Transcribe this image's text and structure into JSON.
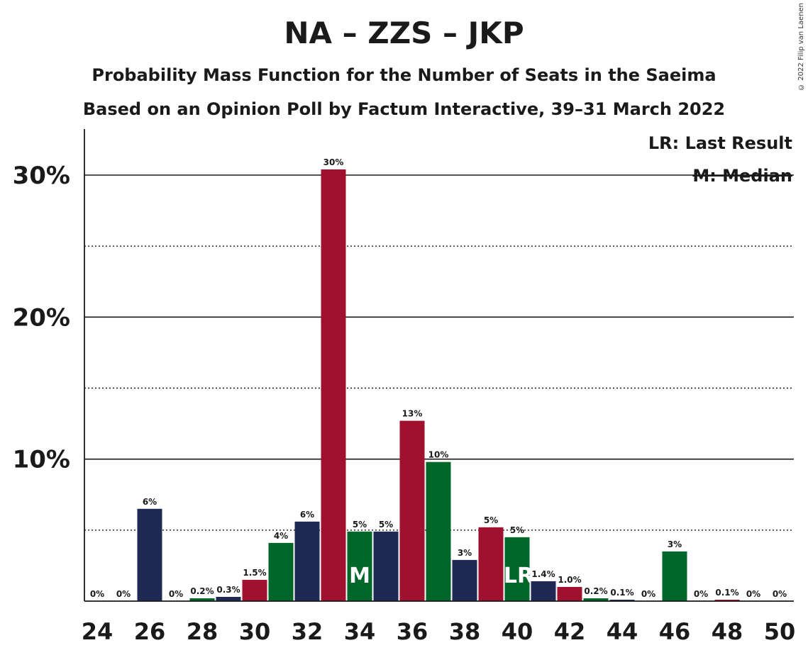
{
  "chart_data": {
    "type": "bar",
    "title": "NA – ZZS – JKP",
    "subtitle": "Probability Mass Function for the Number of Seats in the Saeima",
    "subtitle2": "Based on an Opinion Poll by Factum Interactive, 39–31 March 2022",
    "copyright": "© 2022 Filip van Laenen",
    "legend": {
      "lr": "LR: Last Result",
      "m": "M: Median",
      "position": "top-right"
    },
    "x": [
      24,
      25,
      26,
      27,
      28,
      29,
      30,
      31,
      32,
      33,
      34,
      35,
      36,
      37,
      38,
      39,
      40,
      41,
      42,
      43,
      44,
      45,
      46,
      47,
      48,
      49,
      50
    ],
    "values": [
      0,
      0,
      6.5,
      0,
      0.2,
      0.3,
      1.5,
      4.1,
      5.6,
      30.4,
      4.9,
      4.9,
      12.7,
      9.8,
      2.9,
      5.2,
      4.5,
      1.4,
      1.0,
      0.2,
      0.1,
      0,
      3.5,
      0,
      0.1,
      0,
      0
    ],
    "labels": [
      "0%",
      "0%",
      "6%",
      "0%",
      "0.2%",
      "0.3%",
      "1.5%",
      "4%",
      "6%",
      "30%",
      "5%",
      "5%",
      "13%",
      "10%",
      "3%",
      "5%",
      "5%",
      "1.4%",
      "1.0%",
      "0.2%",
      "0.1%",
      "0%",
      "3%",
      "0%",
      "0.1%",
      "0%",
      "0%"
    ],
    "colors": [
      "#1f2a54",
      "#1f2a54",
      "#1f2a54",
      "#a0112f",
      "#006629",
      "#1f2a54",
      "#a0112f",
      "#006629",
      "#1f2a54",
      "#a0112f",
      "#006629",
      "#1f2a54",
      "#a0112f",
      "#006629",
      "#1f2a54",
      "#a0112f",
      "#006629",
      "#1f2a54",
      "#a0112f",
      "#006629",
      "#1f2a54",
      "#a0112f",
      "#006629",
      "#1f2a54",
      "#a0112f",
      "#006629",
      "#1f2a54"
    ],
    "median": 34,
    "median_mark": "M",
    "last_result": 40,
    "last_result_mark": "LR",
    "ylim": [
      0,
      33
    ],
    "yticks": [
      10,
      20,
      30
    ],
    "ytick_labels": [
      "10%",
      "20%",
      "30%"
    ],
    "xticks": [
      24,
      26,
      28,
      30,
      32,
      34,
      36,
      38,
      40,
      42,
      44,
      46,
      48,
      50
    ],
    "grid": {
      "solid": [
        10,
        20,
        30
      ],
      "dotted": [
        5,
        15,
        25
      ]
    }
  }
}
